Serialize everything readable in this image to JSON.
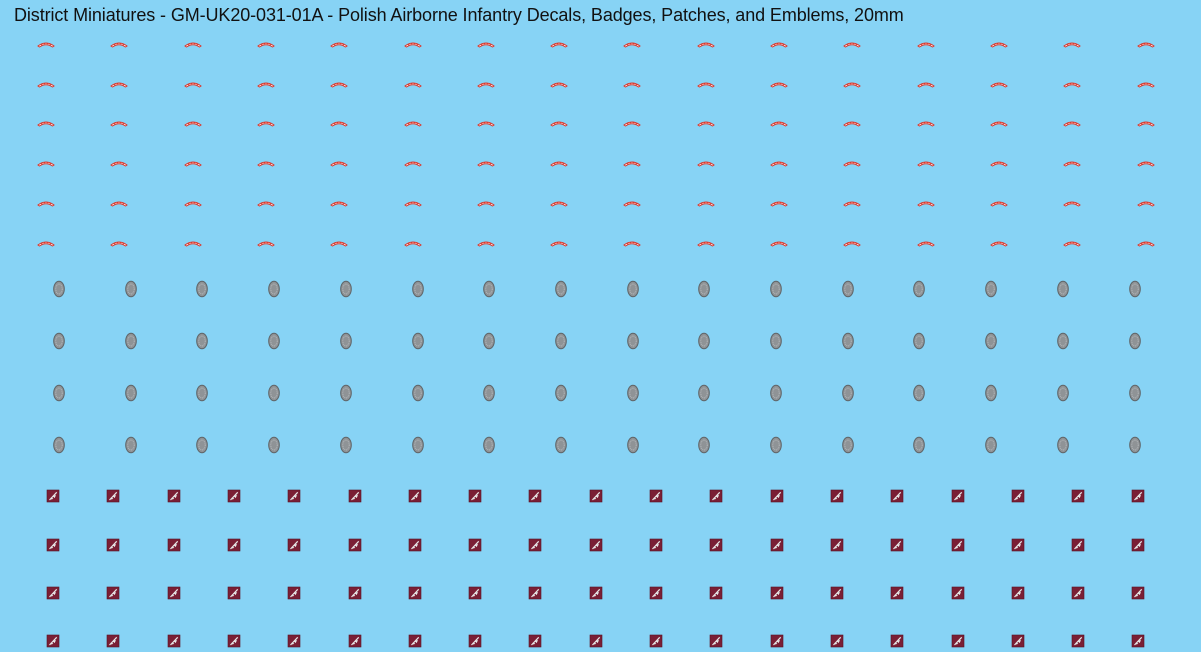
{
  "sheet": {
    "title": "District Miniatures - GM-UK20-031-01A - Polish Airborne Infantry Decals, Badges, Patches, and Emblems, 20mm",
    "background_color": "#87d3f5"
  },
  "decal_types": {
    "shoulder_title": {
      "icon": "poland-shoulder-title-icon",
      "fill": "#ffffff",
      "border": "#d9362b",
      "rows": 6,
      "columns": 16
    },
    "oval_badge": {
      "icon": "eagle-oval-badge-icon",
      "fill": "#8f9396",
      "border": "#5e6366",
      "rows": 4,
      "columns": 16
    },
    "square_patch": {
      "icon": "parachute-eagle-patch-icon",
      "fill": "#7a1f35",
      "emblem": "#e8e8e8",
      "rows": 4,
      "columns": 19
    }
  }
}
